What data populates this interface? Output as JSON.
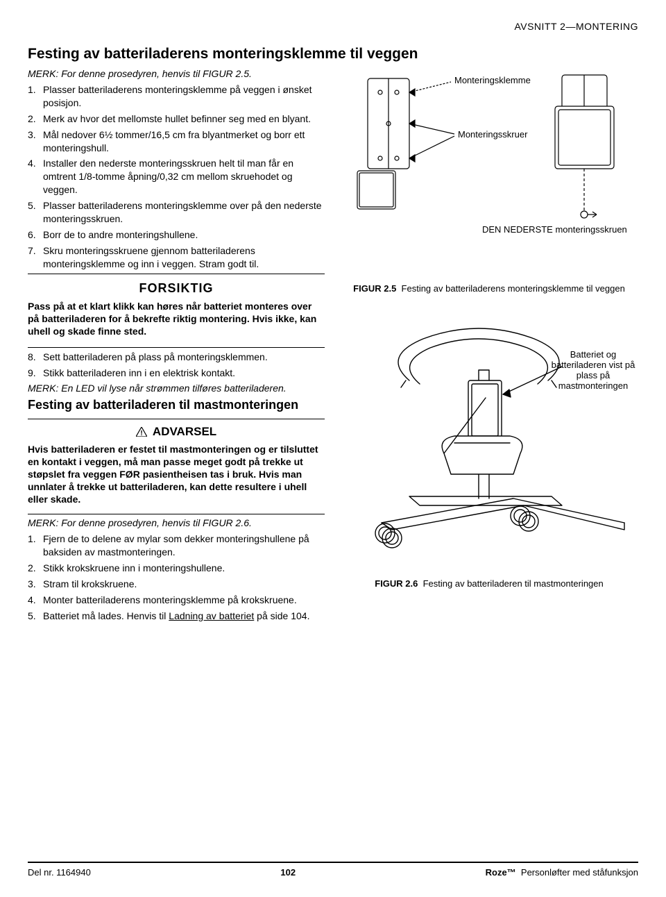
{
  "header": {
    "section": "AVSNITT 2—MONTERING"
  },
  "title": "Festing av batteriladerens monteringsklemme til veggen",
  "note1": "MERK: For denne prosedyren, henvis til FIGUR 2.5.",
  "steps1": [
    "Plasser batteriladerens monteringsklemme på veggen i ønsket posisjon.",
    "Merk av hvor det mellomste hullet befinner seg med en blyant.",
    "Mål nedover 6½ tommer/16,5 cm fra blyantmerket og borr ett monteringshull.",
    "Installer den nederste monteringsskruen helt til man får en omtrent 1/8-tomme åpning/0,32 cm mellom skruehodet og veggen.",
    "Plasser batteriladerens monteringsklemme over på den nederste monteringsskruen.",
    "Borr de to andre monteringshullene.",
    "Skru monteringsskruene gjennom batteriladerens monteringsklemme og inn i veggen. Stram godt til."
  ],
  "caution": {
    "heading": "FORSIKTIG",
    "text": "Pass på at et klart klikk kan høres når batteriet monteres over på batteriladeren for å bekrefte riktig montering. Hvis ikke, kan uhell og skade finne sted."
  },
  "steps2": [
    "Sett batteriladeren på plass på monteringsklemmen.",
    "Stikk batteriladeren inn i en elektrisk kontakt."
  ],
  "steps2_start": 8,
  "note2": "MERK: En LED vil lyse når strømmen tilføres batteriladeren.",
  "subheading": "Festing av batteriladeren til mastmonteringen",
  "warning": {
    "heading": "ADVARSEL",
    "text": "Hvis batteriladeren er festet til mastmonteringen og er tilsluttet en kontakt i veggen, må man passe meget godt på trekke ut støpslet fra veggen FØR pasientheisen tas i bruk. Hvis man unnlater å trekke ut batteriladeren, kan dette resultere i uhell eller skade."
  },
  "note3": "MERK: For denne prosedyren, henvis til FIGUR 2.6.",
  "steps3": [
    "Fjern de to delene av mylar som dekker monteringshullene på baksiden av mastmonteringen.",
    "Stikk krokskruene inn i monteringshullene.",
    "Stram til krokskruene.",
    "Monter batteriladerens monteringsklemme på krokskruene.",
    "Batteriet må lades. Henvis til Ladning av batteriet på side 104."
  ],
  "fig25": {
    "label": "FIGUR 2.5",
    "caption": "Festing av batteriladerens monteringsklemme til veggen",
    "annot1": "Monteringsklemme",
    "annot2": "Monteringsskruer",
    "annot3": "DEN NEDERSTE monteringsskruen"
  },
  "fig26": {
    "label": "FIGUR 2.6",
    "caption": "Festing av batteriladeren til mastmonteringen",
    "annot1": "Batteriet og batteriladeren vist på plass på mastmonteringen"
  },
  "footer": {
    "part": "Del nr. 1164940",
    "page": "102",
    "brand": "Roze™",
    "product": "Personløfter med ståfunksjon"
  },
  "style": {
    "text_color": "#000000",
    "bg_color": "#ffffff",
    "line_color": "#000000",
    "font_body": 14,
    "font_title": 21
  }
}
